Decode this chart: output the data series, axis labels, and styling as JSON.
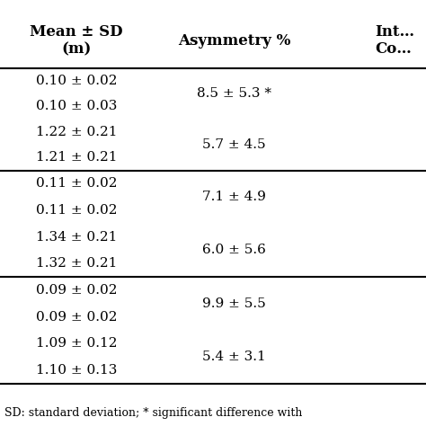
{
  "col1_header": "Mean ± SD\n(m)",
  "col2_header": "Asymmetry %",
  "col3_header": "Int…\nCo…",
  "footer": "SD: standard deviation; * significant difference with",
  "groups": [
    {
      "col1_rows": [
        "0.10 ± 0.02",
        "0.10 ± 0.03",
        "1.22 ± 0.21",
        "1.21 ± 0.21"
      ],
      "col2_rows": [
        "8.5 ± 5.3 *",
        "",
        "5.7 ± 4.5",
        ""
      ]
    },
    {
      "col1_rows": [
        "0.11 ± 0.02",
        "0.11 ± 0.02",
        "1.34 ± 0.21",
        "1.32 ± 0.21"
      ],
      "col2_rows": [
        "7.1 ± 4.9",
        "",
        "6.0 ± 5.6",
        ""
      ]
    },
    {
      "col1_rows": [
        "0.09 ± 0.02",
        "0.09 ± 0.02",
        "1.09 ± 0.12",
        "1.10 ± 0.13"
      ],
      "col2_rows": [
        "9.9 ± 5.5",
        "",
        "5.4 ± 3.1",
        ""
      ]
    }
  ],
  "font_size": 11,
  "header_font_size": 12,
  "footer_font_size": 9,
  "bg_color": "#ffffff",
  "text_color": "#000000",
  "line_color": "#000000"
}
